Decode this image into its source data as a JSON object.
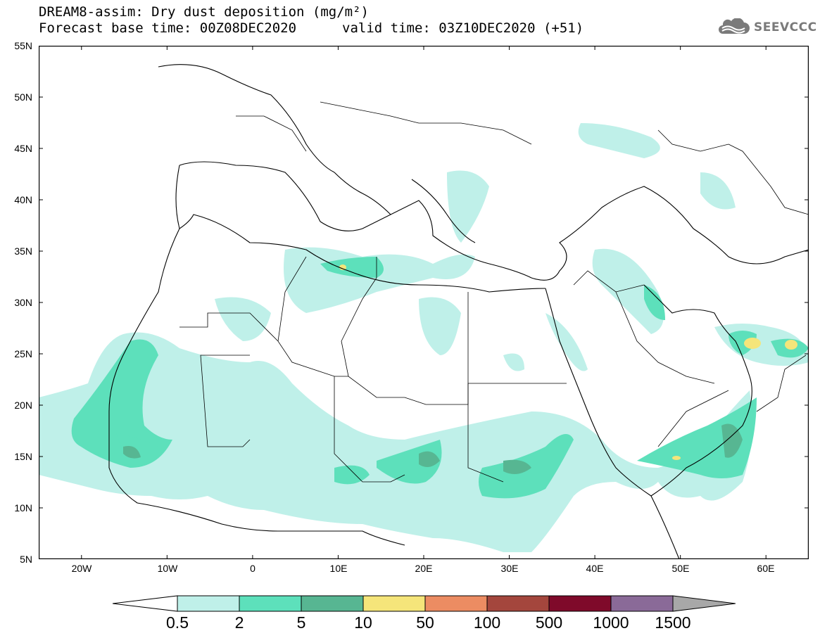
{
  "header": {
    "title": "DREAM8-assim: Dry dust deposition (mg/m²)",
    "base_time": "Forecast base time: 00Z08DEC2020",
    "valid_time": "valid time: 03Z10DEC2020 (+51)"
  },
  "logo": {
    "text": "SEEVCCC",
    "icon": "cloud-icon"
  },
  "map": {
    "region": "North Africa, Europe, Middle East",
    "lon_range": [
      -25,
      65
    ],
    "lat_range": [
      5,
      55
    ],
    "lat_labels": [
      "55N",
      "50N",
      "45N",
      "40N",
      "35N",
      "30N",
      "25N",
      "20N",
      "15N",
      "10N",
      "5N"
    ],
    "lon_labels": [
      "20W",
      "10W",
      "0",
      "10E",
      "20E",
      "30E",
      "40E",
      "50E",
      "60E"
    ],
    "fill_color": "#ffffff",
    "border_color": "#000000"
  },
  "colorbar": {
    "labels": [
      "0.5",
      "2",
      "5",
      "10",
      "50",
      "100",
      "500",
      "1000",
      "1500"
    ],
    "colors": [
      "#ffffff",
      "#bff0e9",
      "#5de0bb",
      "#57b692",
      "#f5e57a",
      "#ec8c62",
      "#a4463d",
      "#7f0a2a",
      "#8a6a98",
      "#a8a8a8"
    ]
  }
}
